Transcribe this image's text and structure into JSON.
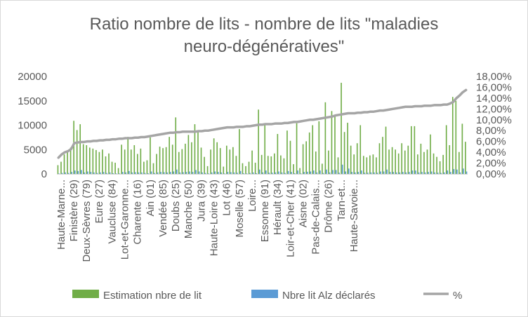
{
  "chart_data": {
    "type": "bar",
    "title_lines": [
      "Ratio nombre de lits - nombre de lits \"maladies",
      "neuro-dégénératives\""
    ],
    "left_axis": {
      "ticks": [
        0,
        5000,
        10000,
        15000,
        20000
      ],
      "ylim": [
        0,
        20000
      ]
    },
    "right_axis": {
      "ticks": [
        "0,00%",
        "2,00%",
        "4,00%",
        "6,00%",
        "8,00%",
        "10,00%",
        "12,00%",
        "14,00%",
        "16,00%",
        "18,00%"
      ],
      "ylim": [
        0,
        18
      ]
    },
    "x_tick_labels": [
      "Haute-Marne...",
      "Finistère (29)",
      "Deux-Sèvres (79)",
      "Eure (27)",
      "Vaucluse (84)",
      "Lot-et-Garonne...",
      "Charente (16)",
      "Ain (01)",
      "Vendée (85)",
      "Doubs (25)",
      "Manche (50)",
      "Jura (39)",
      "Haute-Loire (43)",
      "Lot (46)",
      "Moselle (57)",
      "Loire...",
      "Essonne (91)",
      "Hérault (34)",
      "Loir-et-Cher (41)",
      "Aisne (02)",
      "Pas-de-Calais...",
      "Drôme (26)",
      "Tarn-et...",
      "Haute-Savoie..."
    ],
    "label_every": 4,
    "series": [
      {
        "name": "Estimation nbre de lit",
        "color": "#70ad47",
        "values": [
          1800,
          2500,
          4000,
          4600,
          5400,
          10900,
          9000,
          10200,
          6100,
          5900,
          5400,
          5200,
          4900,
          4500,
          5000,
          3600,
          4200,
          2500,
          2300,
          1200,
          6000,
          5000,
          7600,
          5000,
          5900,
          4100,
          5200,
          2500,
          2800,
          7500,
          2200,
          4100,
          5600,
          5300,
          5500,
          7600,
          6000,
          11600,
          4500,
          5100,
          6200,
          8000,
          6500,
          10200,
          8600,
          5400,
          3500,
          1600,
          5000,
          7300,
          6500,
          5300,
          1500,
          5800,
          5000,
          5500,
          3700,
          9200,
          2200,
          1600,
          2500,
          4800,
          2300,
          13200,
          3900,
          10200,
          3700,
          3600,
          4200,
          8200,
          3800,
          3200,
          8900,
          6800,
          2000,
          10400,
          1200,
          6100,
          6700,
          8500,
          10000,
          4600,
          10800,
          2100,
          14700,
          4800,
          12900,
          11800,
          3400,
          18700,
          8600,
          10500,
          5800,
          4000,
          6300,
          10000,
          3700,
          3400,
          3800,
          4000,
          3400,
          6300,
          7600,
          9700,
          5000,
          5500,
          5000,
          4200,
          6300,
          4800,
          5800,
          9800,
          9800,
          4000,
          6200,
          4500,
          5000,
          8100,
          4200,
          3500,
          2600,
          3900,
          10000,
          5900,
          15800,
          15000,
          4500,
          10300,
          6600
        ]
      },
      {
        "name": "Nbre lit Alz déclarés",
        "color": "#5b9bd5",
        "values": [
          100,
          200,
          300,
          200,
          400,
          700,
          600,
          800,
          300,
          500,
          400,
          300,
          200,
          300,
          400,
          200,
          300,
          150,
          100,
          100,
          400,
          300,
          600,
          300,
          350,
          300,
          300,
          200,
          150,
          500,
          200,
          300,
          400,
          350,
          300,
          400,
          500,
          900,
          300,
          350,
          400,
          500,
          400,
          800,
          500,
          300,
          200,
          100,
          300,
          500,
          400,
          300,
          100,
          400,
          350,
          300,
          250,
          600,
          150,
          100,
          200,
          300,
          150,
          900,
          300,
          700,
          250,
          250,
          300,
          500,
          300,
          200,
          600,
          400,
          150,
          700,
          100,
          400,
          450,
          500,
          700,
          300,
          700,
          200,
          900,
          300,
          800,
          800,
          250,
          1900,
          500,
          1100,
          400,
          300,
          400,
          700,
          250,
          250,
          300,
          300,
          250,
          500,
          500,
          900,
          400,
          400,
          300,
          300,
          400,
          300,
          400,
          700,
          700,
          300,
          400,
          300,
          400,
          500,
          300,
          250,
          200,
          300,
          700,
          400,
          1000,
          900,
          300,
          1100,
          500
        ]
      },
      {
        "name": "%",
        "color": "#a5a5a5",
        "values_percent": [
          3.0,
          3.6,
          4.0,
          4.2,
          4.6,
          5.7,
          5.8,
          5.9,
          5.9,
          6.0,
          6.0,
          6.1,
          6.1,
          6.2,
          6.2,
          6.3,
          6.3,
          6.4,
          6.4,
          6.5,
          6.5,
          6.6,
          6.6,
          6.6,
          6.7,
          6.7,
          6.8,
          6.8,
          6.9,
          7.0,
          7.1,
          7.2,
          7.3,
          7.4,
          7.5,
          7.6,
          7.6,
          7.7,
          7.7,
          7.8,
          7.8,
          7.8,
          7.8,
          7.8,
          7.9,
          7.9,
          8.0,
          8.0,
          8.1,
          8.2,
          8.3,
          8.4,
          8.5,
          8.6,
          8.6,
          8.6,
          8.7,
          8.7,
          8.7,
          8.8,
          8.8,
          8.9,
          9.0,
          9.1,
          9.1,
          9.2,
          9.2,
          9.2,
          9.3,
          9.3,
          9.3,
          9.4,
          9.4,
          9.5,
          9.6,
          9.6,
          9.7,
          9.8,
          9.9,
          10.0,
          10.0,
          10.1,
          10.2,
          10.3,
          10.4,
          10.5,
          10.6,
          10.8,
          10.9,
          11.0,
          11.1,
          11.2,
          11.2,
          11.2,
          11.3,
          11.3,
          11.4,
          11.4,
          11.5,
          11.5,
          11.6,
          11.7,
          11.7,
          11.8,
          11.9,
          12.0,
          12.1,
          12.2,
          12.3,
          12.4,
          12.4,
          12.4,
          12.5,
          12.5,
          12.5,
          12.6,
          12.6,
          12.6,
          12.7,
          12.7,
          12.7,
          12.8,
          12.8,
          13.0,
          13.3,
          14.0,
          14.5,
          15.1,
          15.5
        ]
      }
    ],
    "legend_position": "bottom",
    "grid": false
  }
}
